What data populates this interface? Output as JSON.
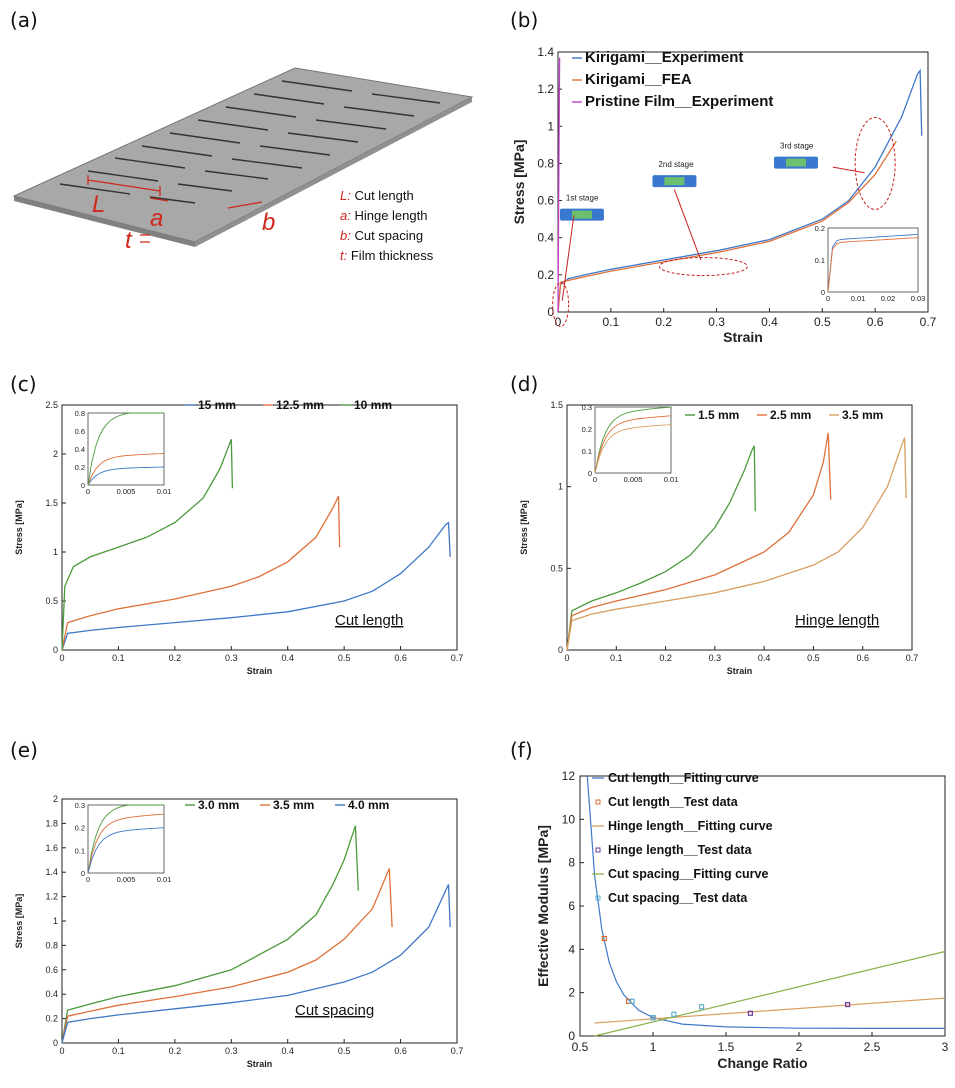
{
  "panels": {
    "a": {
      "label": "(a)",
      "dims": [
        {
          "symbol": "L",
          "desc": "Cut length"
        },
        {
          "symbol": "a",
          "desc": "Hinge length"
        },
        {
          "symbol": "b",
          "desc": "Cut spacing"
        },
        {
          "symbol": "t",
          "desc": "Film thickness"
        }
      ]
    },
    "b": {
      "label": "(b)",
      "stages": [
        "1st stage",
        "2nd stage",
        "3rd stage"
      ]
    },
    "c": {
      "label": "(c)",
      "caption": "Cut length"
    },
    "d": {
      "label": "(d)",
      "caption": "Hinge length"
    },
    "e": {
      "label": "(e)",
      "caption": "Cut spacing"
    },
    "f": {
      "label": "(f)"
    }
  },
  "colors": {
    "blue": "#3f78c8",
    "orange": "#e0703a",
    "green": "#4a9a3a",
    "magenta": "#c040c8",
    "tan": "#d8a060",
    "darkorange": "#d86a30"
  },
  "chart_data": [
    {
      "id": "b",
      "type": "line",
      "xlabel": "Strain",
      "ylabel": "Stress [MPa]",
      "xlim": [
        0,
        0.7
      ],
      "ylim": [
        0,
        1.4
      ],
      "xticks": [
        0,
        0.1,
        0.2,
        0.3,
        0.4,
        0.5,
        0.6,
        0.7
      ],
      "yticks": [
        0,
        0.2,
        0.4,
        0.6,
        0.8,
        1,
        1.2,
        1.4
      ],
      "legend_position": "top-left",
      "series": [
        {
          "name": "Kirigami__Experiment",
          "color": "#3f78c8",
          "x": [
            0,
            0.005,
            0.02,
            0.05,
            0.1,
            0.2,
            0.3,
            0.4,
            0.5,
            0.55,
            0.6,
            0.65,
            0.68,
            0.685,
            0.688
          ],
          "y": [
            0,
            0.15,
            0.18,
            0.2,
            0.23,
            0.28,
            0.33,
            0.39,
            0.5,
            0.6,
            0.78,
            1.05,
            1.28,
            1.3,
            0.95
          ]
        },
        {
          "name": "Kirigami__FEA",
          "color": "#e0703a",
          "x": [
            0,
            0.005,
            0.02,
            0.05,
            0.1,
            0.2,
            0.3,
            0.4,
            0.5,
            0.55,
            0.6,
            0.64
          ],
          "y": [
            0,
            0.16,
            0.17,
            0.19,
            0.22,
            0.27,
            0.32,
            0.38,
            0.49,
            0.59,
            0.74,
            0.92
          ]
        },
        {
          "name": "Pristine Film__Experiment",
          "color": "#c040c8",
          "x": [
            0,
            0.002,
            0.003
          ],
          "y": [
            0,
            1.0,
            1.37
          ]
        }
      ],
      "inset": {
        "xlim": [
          0,
          0.03
        ],
        "ylim": [
          0,
          0.2
        ],
        "xticks": [
          0,
          0.01,
          0.02,
          0.03
        ],
        "yticks": [
          0,
          0.1,
          0.2
        ]
      }
    },
    {
      "id": "c",
      "type": "line",
      "xlabel": "Strain",
      "ylabel": "Stress [MPa]",
      "xlim": [
        0,
        0.7
      ],
      "ylim": [
        0,
        2.5
      ],
      "xticks": [
        0,
        0.1,
        0.2,
        0.3,
        0.4,
        0.5,
        0.6,
        0.7
      ],
      "yticks": [
        0,
        0.5,
        1,
        1.5,
        2,
        2.5
      ],
      "legend_position": "top-right",
      "series": [
        {
          "name": "15 mm",
          "color": "#3f78c8",
          "x": [
            0,
            0.01,
            0.05,
            0.1,
            0.2,
            0.3,
            0.4,
            0.5,
            0.55,
            0.6,
            0.65,
            0.68,
            0.685,
            0.688
          ],
          "y": [
            0,
            0.17,
            0.2,
            0.23,
            0.28,
            0.33,
            0.39,
            0.5,
            0.6,
            0.78,
            1.05,
            1.28,
            1.3,
            0.95
          ]
        },
        {
          "name": "12.5 mm",
          "color": "#e0703a",
          "x": [
            0,
            0.01,
            0.05,
            0.1,
            0.2,
            0.3,
            0.35,
            0.4,
            0.45,
            0.48,
            0.49,
            0.492
          ],
          "y": [
            0,
            0.28,
            0.35,
            0.42,
            0.52,
            0.65,
            0.75,
            0.9,
            1.15,
            1.45,
            1.57,
            1.05
          ]
        },
        {
          "name": "10 mm",
          "color": "#4a9a3a",
          "x": [
            0,
            0.005,
            0.02,
            0.05,
            0.1,
            0.15,
            0.2,
            0.25,
            0.28,
            0.3,
            0.302
          ],
          "y": [
            0,
            0.65,
            0.85,
            0.95,
            1.05,
            1.15,
            1.3,
            1.55,
            1.85,
            2.15,
            1.65
          ]
        }
      ],
      "inset": {
        "xlim": [
          0,
          0.01
        ],
        "ylim": [
          0,
          0.8
        ],
        "xticks": [
          0,
          0.005,
          0.01
        ],
        "yticks": [
          0,
          0.2,
          0.4,
          0.6,
          0.8
        ]
      }
    },
    {
      "id": "d",
      "type": "line",
      "xlabel": "Strain",
      "ylabel": "Stress [MPa]",
      "xlim": [
        0,
        0.7
      ],
      "ylim": [
        0,
        1.5
      ],
      "xticks": [
        0,
        0.1,
        0.2,
        0.3,
        0.4,
        0.5,
        0.6,
        0.7
      ],
      "yticks": [
        0,
        0.5,
        1,
        1.5
      ],
      "legend_position": "top-right",
      "series": [
        {
          "name": "1.5 mm",
          "color": "#4a9a3a",
          "x": [
            0,
            0.01,
            0.05,
            0.1,
            0.15,
            0.2,
            0.25,
            0.3,
            0.33,
            0.36,
            0.375,
            0.38,
            0.382
          ],
          "y": [
            0,
            0.24,
            0.3,
            0.35,
            0.41,
            0.48,
            0.58,
            0.75,
            0.9,
            1.1,
            1.22,
            1.25,
            0.85
          ]
        },
        {
          "name": "2.5 mm",
          "color": "#e0703a",
          "x": [
            0,
            0.01,
            0.05,
            0.1,
            0.2,
            0.3,
            0.4,
            0.45,
            0.5,
            0.52,
            0.53,
            0.535
          ],
          "y": [
            0,
            0.21,
            0.26,
            0.3,
            0.37,
            0.46,
            0.6,
            0.72,
            0.95,
            1.15,
            1.33,
            0.92
          ]
        },
        {
          "name": "3.5 mm",
          "color": "#d8a060",
          "x": [
            0,
            0.01,
            0.05,
            0.1,
            0.2,
            0.3,
            0.4,
            0.5,
            0.55,
            0.6,
            0.65,
            0.68,
            0.685,
            0.688
          ],
          "y": [
            0,
            0.18,
            0.22,
            0.25,
            0.3,
            0.35,
            0.42,
            0.52,
            0.6,
            0.75,
            1.0,
            1.26,
            1.3,
            0.93
          ]
        }
      ],
      "inset": {
        "xlim": [
          0,
          0.01
        ],
        "ylim": [
          0,
          0.3
        ],
        "xticks": [
          0,
          0.005,
          0.01
        ],
        "yticks": [
          0,
          0.1,
          0.2,
          0.3
        ]
      }
    },
    {
      "id": "e",
      "type": "line",
      "xlabel": "Strain",
      "ylabel": "Stress [MPa]",
      "xlim": [
        0,
        0.7
      ],
      "ylim": [
        0,
        2
      ],
      "xticks": [
        0,
        0.1,
        0.2,
        0.3,
        0.4,
        0.5,
        0.6,
        0.7
      ],
      "yticks": [
        0,
        0.2,
        0.4,
        0.6,
        0.8,
        1,
        1.2,
        1.4,
        1.6,
        1.8,
        2
      ],
      "legend_position": "top-right",
      "series": [
        {
          "name": "3.0 mm",
          "color": "#4a9a3a",
          "x": [
            0,
            0.01,
            0.05,
            0.1,
            0.2,
            0.3,
            0.4,
            0.45,
            0.48,
            0.5,
            0.52,
            0.525
          ],
          "y": [
            0,
            0.27,
            0.32,
            0.38,
            0.47,
            0.6,
            0.85,
            1.05,
            1.3,
            1.5,
            1.78,
            1.25
          ]
        },
        {
          "name": "3.5 mm",
          "color": "#e0703a",
          "x": [
            0,
            0.01,
            0.05,
            0.1,
            0.2,
            0.3,
            0.4,
            0.45,
            0.5,
            0.55,
            0.58,
            0.585
          ],
          "y": [
            0,
            0.22,
            0.26,
            0.31,
            0.38,
            0.46,
            0.58,
            0.68,
            0.85,
            1.1,
            1.43,
            0.95
          ]
        },
        {
          "name": "4.0 mm",
          "color": "#3f78c8",
          "x": [
            0,
            0.01,
            0.05,
            0.1,
            0.2,
            0.3,
            0.4,
            0.5,
            0.55,
            0.6,
            0.65,
            0.68,
            0.685,
            0.688
          ],
          "y": [
            0,
            0.17,
            0.2,
            0.23,
            0.28,
            0.33,
            0.39,
            0.5,
            0.58,
            0.72,
            0.95,
            1.25,
            1.3,
            0.95
          ]
        }
      ],
      "inset": {
        "xlim": [
          0,
          0.01
        ],
        "ylim": [
          0,
          0.3
        ],
        "xticks": [
          0,
          0.005,
          0.01
        ],
        "yticks": [
          0,
          0.1,
          0.2,
          0.3
        ]
      }
    },
    {
      "id": "f",
      "type": "scatter",
      "xlabel": "Change Ratio",
      "ylabel": "Effective Modulus [MPa]",
      "xlim": [
        0.5,
        3
      ],
      "ylim": [
        0,
        12
      ],
      "xticks": [
        0.5,
        1,
        1.5,
        2,
        2.5,
        3
      ],
      "yticks": [
        0,
        2,
        4,
        6,
        8,
        10,
        12
      ],
      "legend_position": "top-left",
      "series": [
        {
          "name": "Cut length__Fitting curve",
          "kind": "line",
          "color": "#3f78c8",
          "x": [
            0.55,
            0.6,
            0.65,
            0.7,
            0.75,
            0.8,
            0.9,
            1.0,
            1.2,
            1.5,
            2,
            2.5,
            3
          ],
          "y": [
            12,
            7.4,
            4.9,
            3.4,
            2.5,
            1.9,
            1.2,
            0.85,
            0.55,
            0.42,
            0.36,
            0.35,
            0.35
          ]
        },
        {
          "name": "Cut length__Test data",
          "kind": "points",
          "color": "#d86a30",
          "x": [
            0.667,
            0.833,
            1.0
          ],
          "y": [
            4.5,
            1.6,
            0.85
          ]
        },
        {
          "name": "Hinge length__Fitting curve",
          "kind": "line",
          "color": "#d8a060",
          "x": [
            0.6,
            3
          ],
          "y": [
            0.6,
            1.75
          ]
        },
        {
          "name": "Hinge length__Test data",
          "kind": "points",
          "color": "#6a3aa0",
          "x": [
            1.0,
            1.667,
            2.333
          ],
          "y": [
            0.85,
            1.05,
            1.45
          ]
        },
        {
          "name": "Cut spacing__Fitting curve",
          "kind": "line",
          "color": "#8ab048",
          "x": [
            0.6,
            3
          ],
          "y": [
            0.0,
            3.9
          ]
        },
        {
          "name": "Cut spacing__Test data",
          "kind": "points",
          "color": "#60b0d0",
          "x": [
            0.857,
            1.0,
            1.143,
            1.333
          ],
          "y": [
            1.6,
            0.85,
            1.0,
            1.35
          ]
        }
      ]
    }
  ]
}
